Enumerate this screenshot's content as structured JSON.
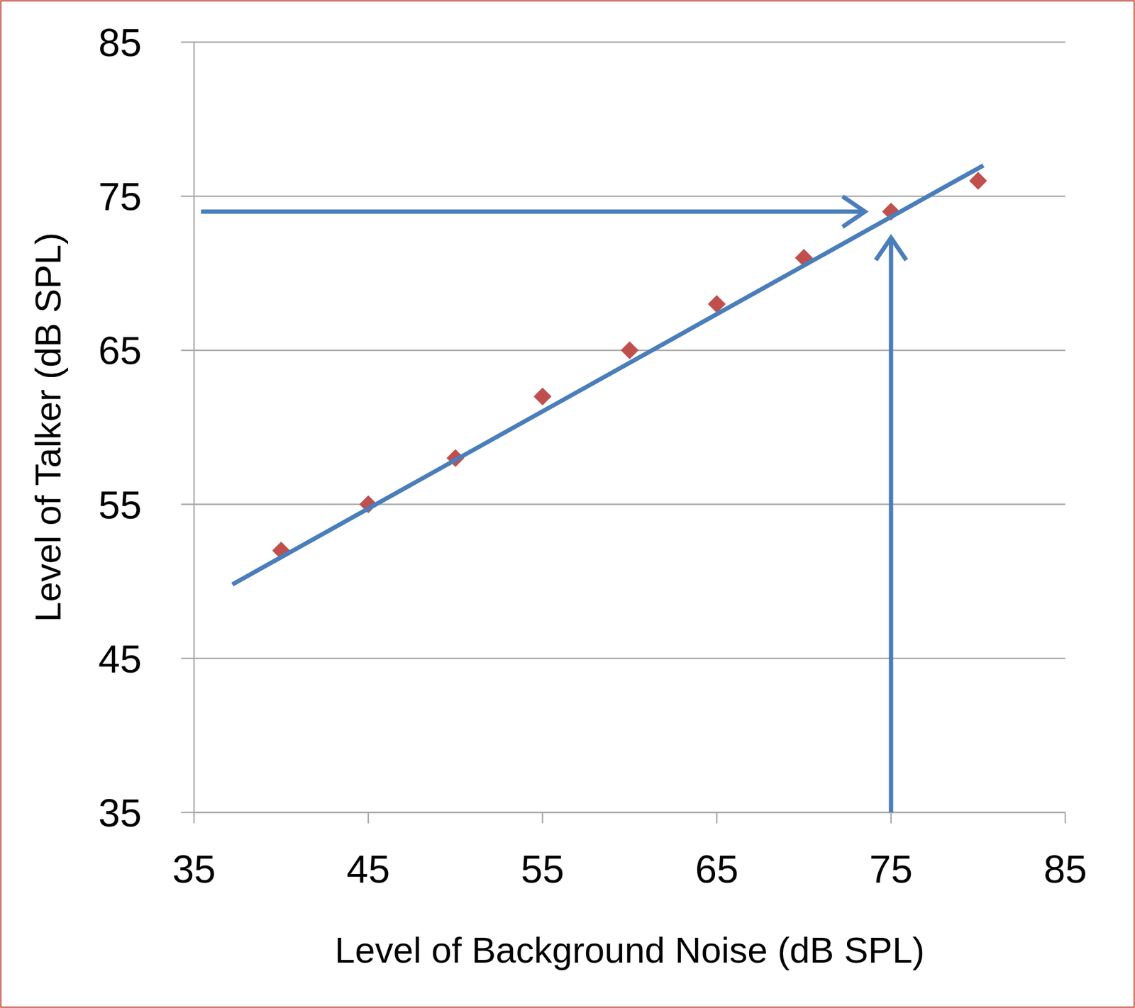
{
  "chart_data": {
    "type": "scatter",
    "x_label": "Level of Background Noise (dB SPL)",
    "y_label": "Level of Talker (dB SPL)",
    "xlim": [
      35,
      85
    ],
    "xticks": [
      35,
      45,
      55,
      65,
      75,
      85
    ],
    "ylim": [
      35,
      85
    ],
    "yticks": [
      35,
      45,
      55,
      65,
      75,
      85
    ],
    "grid": true,
    "series": [
      {
        "type": "scatter",
        "marker": "diamond",
        "color": "#c0504d",
        "x": [
          40,
          45,
          50,
          55,
          60,
          65,
          70,
          75,
          80
        ],
        "values": [
          52,
          55,
          58,
          62,
          65,
          68,
          71,
          74,
          76
        ]
      },
      {
        "type": "line",
        "line_style": "solid",
        "color": "#4a7ebb",
        "x": [
          37.2,
          80.3
        ],
        "values": [
          49.8,
          77
        ]
      }
    ],
    "arrows": [
      {
        "color": "#4a7ebb",
        "x": [
          35.4,
          73.5
        ],
        "y": [
          74,
          74
        ]
      },
      {
        "color": "#4a7ebb",
        "x": [
          75,
          75
        ],
        "y": [
          35,
          72.3
        ]
      }
    ]
  }
}
